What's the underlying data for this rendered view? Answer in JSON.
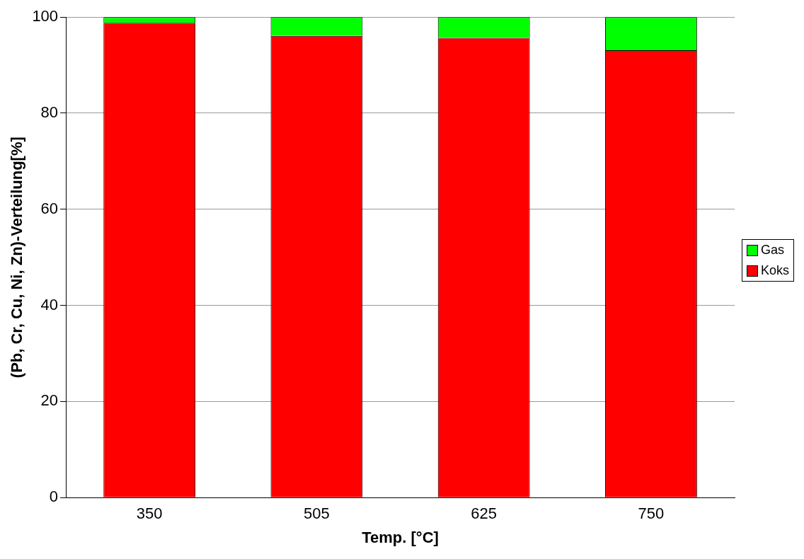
{
  "chart_data": {
    "type": "bar",
    "xlabel": "Temp. [°C]",
    "ylabel": "(Pb, Cr, Cu, Ni, Zn)-Verteilung[%]",
    "categories": [
      "350",
      "505",
      "625",
      "750"
    ],
    "stacked": true,
    "series": [
      {
        "name": "Koks",
        "color": "#ff0000",
        "values": [
          98.8,
          96.1,
          95.7,
          93.1
        ]
      },
      {
        "name": "Gas",
        "color": "#00ff00",
        "values": [
          1.2,
          3.9,
          4.3,
          6.9
        ]
      }
    ],
    "ylim": [
      0,
      100
    ],
    "yticks": [
      0,
      20,
      40,
      60,
      80,
      100
    ],
    "grid": "y",
    "legend": "right"
  }
}
